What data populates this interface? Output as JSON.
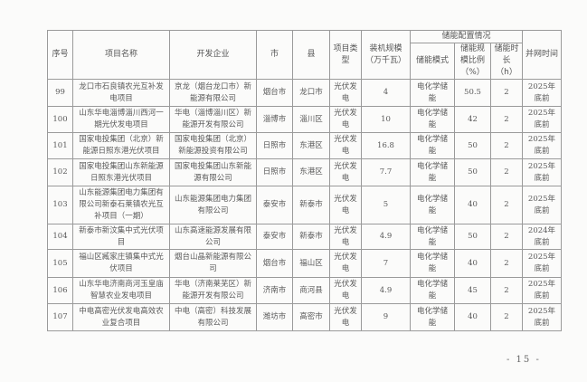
{
  "table": {
    "headers": {
      "seq": "序号",
      "name": "项目名称",
      "developer": "开发企业",
      "city": "市",
      "county": "县",
      "type": "项目类型",
      "capacity": "装机规模（万千瓦）",
      "storage_group": "储能配置情况",
      "storage_mode": "储能模式",
      "storage_ratio": "储能规模比例（%）",
      "storage_hours": "储能时长（h）",
      "grid_time": "并网时间"
    },
    "rows": [
      {
        "seq": "99",
        "name": "龙口市石良镇农光互补发电项目",
        "developer": "京龙（烟台龙口市）新能源有限公司",
        "city": "烟台市",
        "county": "龙口市",
        "type": "光伏发电",
        "capacity": "4",
        "mode": "电化学储能",
        "ratio": "50.5",
        "hours": "2",
        "time": "2025年底前"
      },
      {
        "seq": "100",
        "name": "山东华电淄博淄川西河一期光伏发电项目",
        "developer": "华电（淄博淄川区）新能源开发有限公司",
        "city": "淄博市",
        "county": "淄川区",
        "type": "光伏发电",
        "capacity": "10",
        "mode": "电化学储能",
        "ratio": "42",
        "hours": "2",
        "time": "2025年底前"
      },
      {
        "seq": "101",
        "name": "国家电投集团（北京）新能源日照东港光伏项目",
        "developer": "国家电投集团（北京）新能源投资有限公司",
        "city": "日照市",
        "county": "东港区",
        "type": "光伏发电",
        "capacity": "16.8",
        "mode": "电化学储能",
        "ratio": "50",
        "hours": "2",
        "time": "2025年底前"
      },
      {
        "seq": "102",
        "name": "国家电投集团山东新能源日照东港光伏项目",
        "developer": "国家电投集团山东新能源有限公司",
        "city": "日照市",
        "county": "东港区",
        "type": "光伏发电",
        "capacity": "7.7",
        "mode": "电化学储能",
        "ratio": "50",
        "hours": "2",
        "time": "2025年底前"
      },
      {
        "seq": "103",
        "name": "山东能源集团电力集团有限公司新泰石莱镇农光互补项目（一期）",
        "developer": "山东能源集团电力集团有限公司",
        "city": "泰安市",
        "county": "新泰市",
        "type": "光伏发电",
        "capacity": "5",
        "mode": "电化学储能",
        "ratio": "40",
        "hours": "2",
        "time": "2025年底前"
      },
      {
        "seq": "104",
        "name": "新泰市新汶集中式光伏项目",
        "developer": "山东高速能源发展有限公司",
        "city": "泰安市",
        "county": "新泰市",
        "type": "光伏发电",
        "capacity": "4.9",
        "mode": "电化学储能",
        "ratio": "50",
        "hours": "2",
        "time": "2024年底前"
      },
      {
        "seq": "105",
        "name": "福山区臧家庄镇集中式光伏项目",
        "developer": "烟台山晶新能源有限公司",
        "city": "烟台市",
        "county": "福山区",
        "type": "光伏发电",
        "capacity": "7",
        "mode": "电化学储能",
        "ratio": "40",
        "hours": "2",
        "time": "2025年底前"
      },
      {
        "seq": "106",
        "name": "山东华电济南商河玉皇庙智慧农业发电项目",
        "developer": "华电（济南莱芜区）新能源开发有限公司",
        "city": "济南市",
        "county": "商河县",
        "type": "光伏发电",
        "capacity": "4.9",
        "mode": "电化学储能",
        "ratio": "45",
        "hours": "2",
        "time": "2025年底前"
      },
      {
        "seq": "107",
        "name": "中电高密光伏发电高效农业复合项目",
        "developer": "中电（高密）科技发展有限公司",
        "city": "潍坊市",
        "county": "高密市",
        "type": "光伏发电",
        "capacity": "9",
        "mode": "电化学储能",
        "ratio": "40",
        "hours": "2",
        "time": "2025年底前"
      }
    ]
  },
  "page_number": "- 15 -"
}
